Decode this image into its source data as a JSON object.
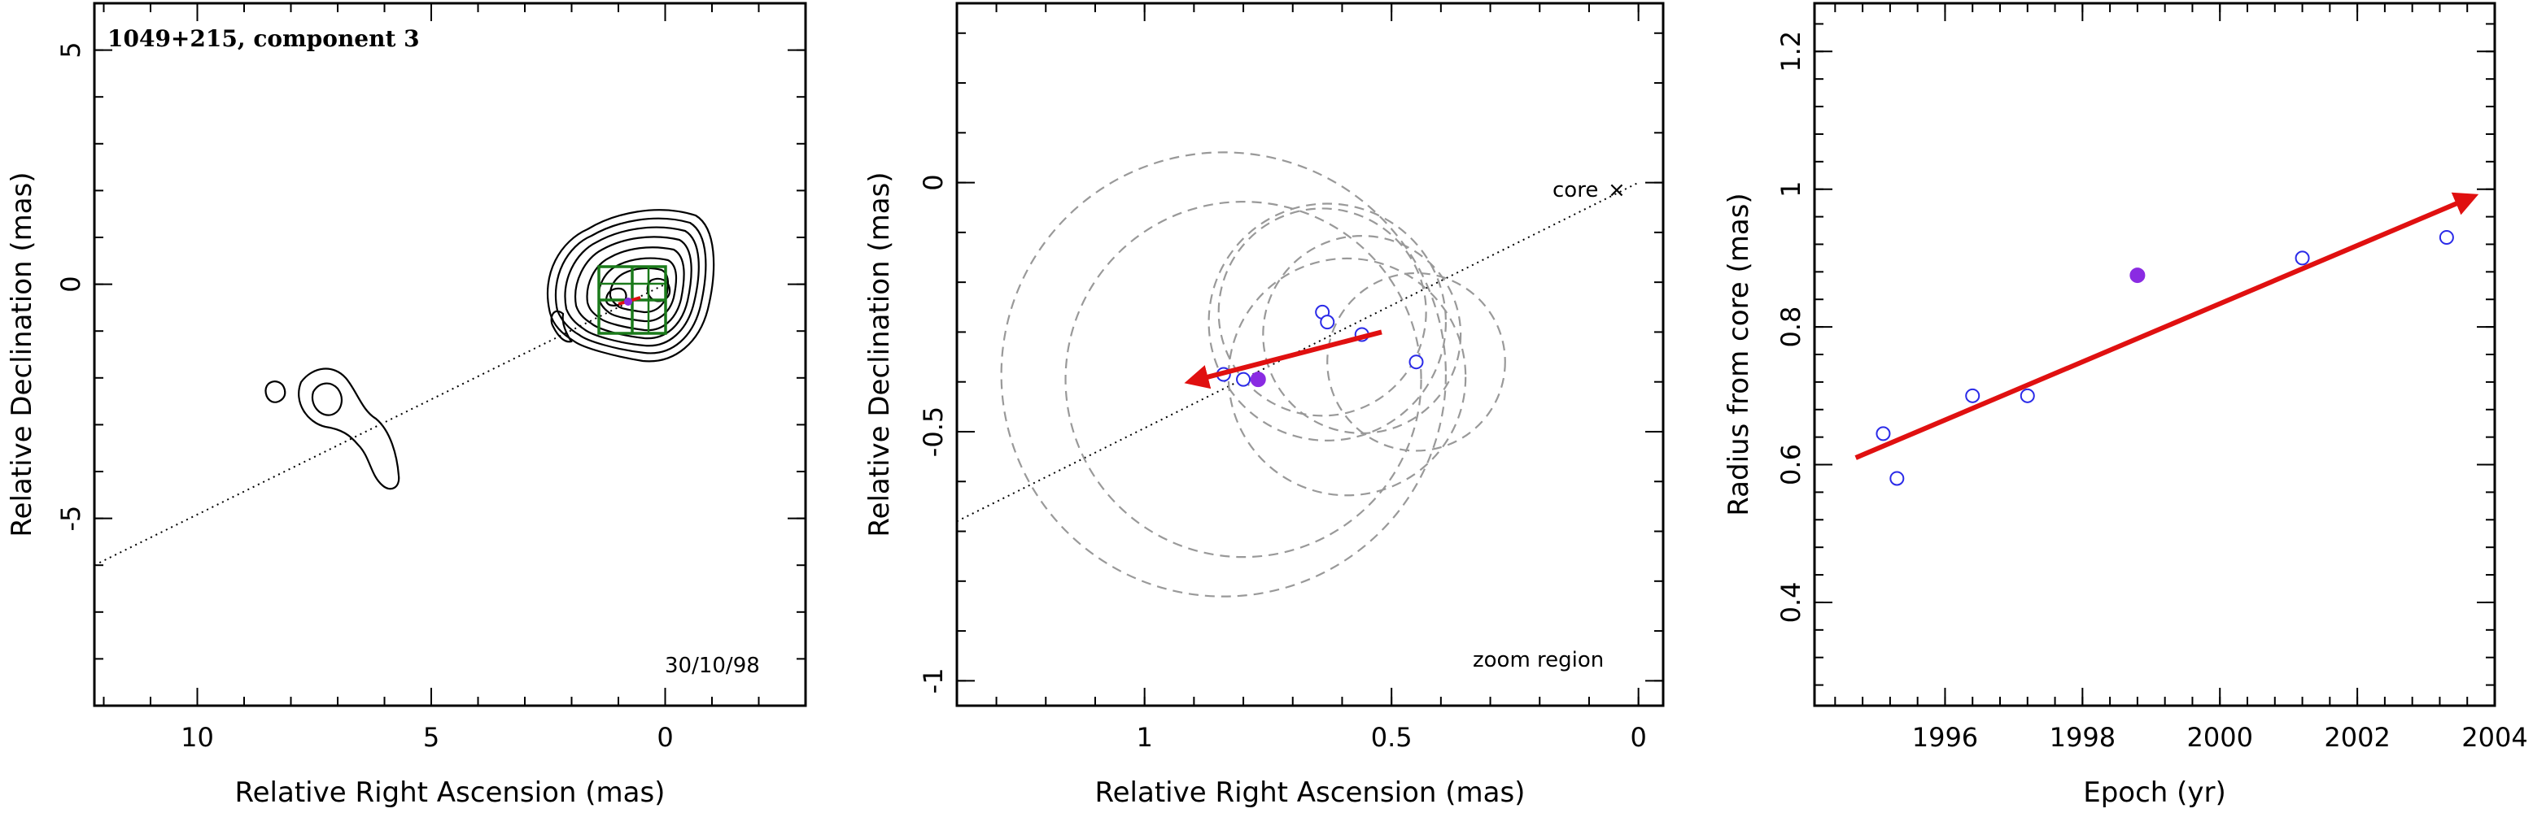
{
  "chart_data": [
    {
      "type": "scatter",
      "title": "1049+215, component 3",
      "xlabel": "Relative Right Ascension (mas)",
      "ylabel": "Relative Declination (mas)",
      "xlim": [
        12.2,
        -3.0
      ],
      "ylim": [
        -9.0,
        6.0
      ],
      "xticks": [
        10,
        5,
        0
      ],
      "yticks": [
        5,
        0,
        -5
      ],
      "annotation": "30/10/98",
      "core_line": [
        [
          12.2,
          -6.0
        ],
        [
          0.0,
          0.0
        ]
      ],
      "contour_colors": {
        "contour": "#000000",
        "box": "#1a7a1a",
        "track": "#e01010",
        "component": "#8a2be2"
      }
    },
    {
      "type": "scatter",
      "title": "",
      "xlabel": "Relative Right Ascension (mas)",
      "ylabel": "Relative Declination (mas)",
      "xlim": [
        1.38,
        -0.05
      ],
      "ylim": [
        -1.05,
        0.36
      ],
      "xticks": [
        1,
        0.5,
        0
      ],
      "yticks": [
        0,
        -0.5,
        -1
      ],
      "annotations": [
        "core",
        "zoom region"
      ],
      "core_line": [
        [
          1.38,
          -0.68
        ],
        [
          0.0,
          0.0
        ]
      ],
      "points": [
        {
          "x": 0.84,
          "y": -0.385
        },
        {
          "x": 0.8,
          "y": -0.395
        },
        {
          "x": 0.64,
          "y": -0.26
        },
        {
          "x": 0.63,
          "y": -0.28
        },
        {
          "x": 0.56,
          "y": -0.305
        },
        {
          "x": 0.45,
          "y": -0.36
        }
      ],
      "highlight_point": {
        "x": 0.77,
        "y": -0.395
      },
      "circles": [
        {
          "x": 0.84,
          "y": -0.385,
          "r": 0.45
        },
        {
          "x": 0.8,
          "y": -0.395,
          "r": 0.36
        },
        {
          "x": 0.64,
          "y": -0.26,
          "r": 0.21
        },
        {
          "x": 0.63,
          "y": -0.28,
          "r": 0.24
        },
        {
          "x": 0.56,
          "y": -0.305,
          "r": 0.2
        },
        {
          "x": 0.45,
          "y": -0.36,
          "r": 0.18
        },
        {
          "x": 0.59,
          "y": -0.39,
          "r": 0.24
        }
      ],
      "arrow": {
        "from": [
          0.52,
          -0.3
        ],
        "to": [
          0.91,
          -0.4
        ]
      },
      "colors": {
        "points": "#2a2ae8",
        "highlight": "#8a2be2",
        "circles": "#999999",
        "arrow": "#e01010"
      }
    },
    {
      "type": "scatter",
      "title": "",
      "xlabel": "Epoch (yr)",
      "ylabel": "Radius from core (mas)",
      "xlim": [
        1994.1,
        2004.0
      ],
      "ylim": [
        0.25,
        1.27
      ],
      "xticks": [
        "1996",
        "1998",
        "2000",
        "2002",
        "2004"
      ],
      "yticks": [
        "0.4",
        "0.6",
        "0.8",
        "1",
        "1.2"
      ],
      "points": [
        {
          "x": 1995.1,
          "y": 0.645
        },
        {
          "x": 1995.3,
          "y": 0.58
        },
        {
          "x": 1996.4,
          "y": 0.7
        },
        {
          "x": 1997.2,
          "y": 0.7
        },
        {
          "x": 2001.2,
          "y": 0.9
        },
        {
          "x": 2003.3,
          "y": 0.93
        }
      ],
      "highlight_point": {
        "x": 1998.8,
        "y": 0.875
      },
      "fit_arrow": {
        "from": [
          1994.7,
          0.61
        ],
        "to": [
          2003.7,
          0.99
        ]
      },
      "colors": {
        "points": "#2a2ae8",
        "highlight": "#8a2be2",
        "arrow": "#e01010"
      }
    }
  ],
  "labels": {
    "core": "core",
    "zoom": "zoom region"
  }
}
